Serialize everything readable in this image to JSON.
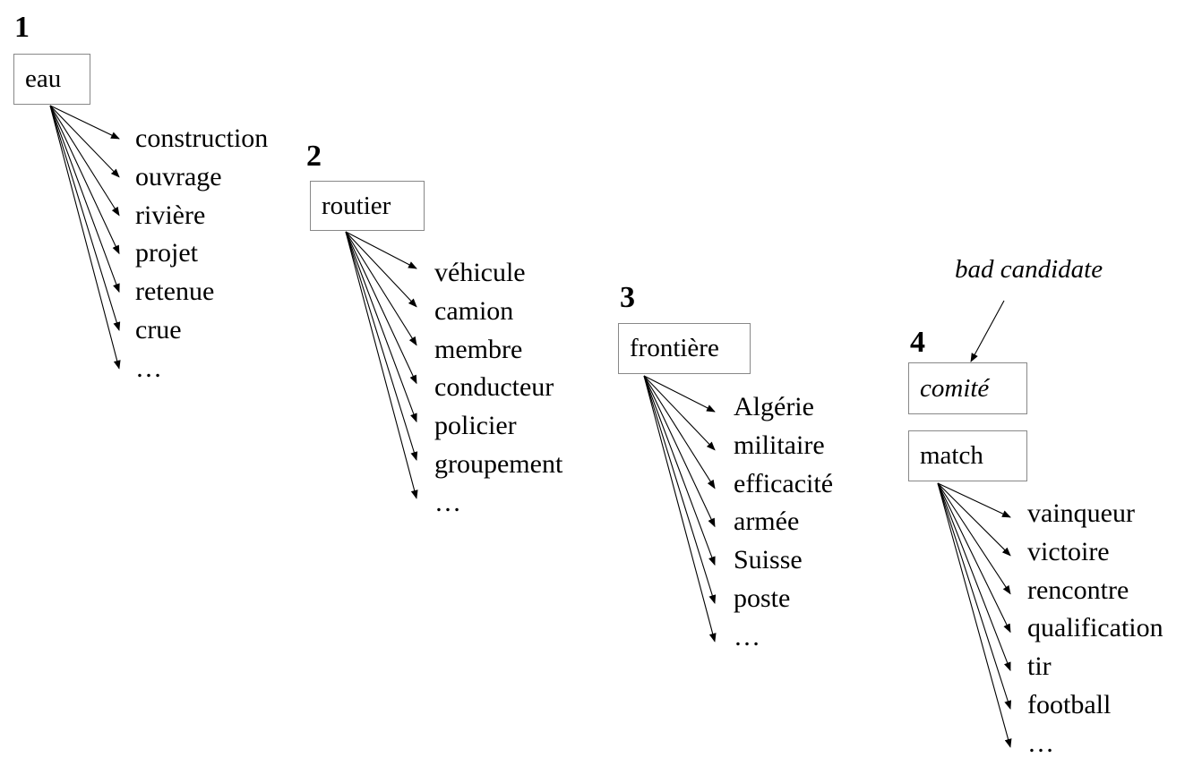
{
  "groups": [
    {
      "number": "1",
      "seed": "eau",
      "related": [
        "construction",
        "ouvrage",
        "rivière",
        "projet",
        "retenue",
        "crue",
        "…"
      ]
    },
    {
      "number": "2",
      "seed": "routier",
      "related": [
        "véhicule",
        "camion",
        "membre",
        "conducteur",
        "policier",
        "groupement",
        "…"
      ]
    },
    {
      "number": "3",
      "seed": "frontière",
      "related": [
        "Algérie",
        "militaire",
        "efficacité",
        "armée",
        "Suisse",
        "poste",
        "…"
      ]
    },
    {
      "number": "4",
      "candidate": "comité",
      "seed": "match",
      "related": [
        "vainqueur",
        "victoire",
        "rencontre",
        "qualification",
        "tir",
        "football",
        "…"
      ]
    }
  ],
  "annotation": "bad candidate"
}
